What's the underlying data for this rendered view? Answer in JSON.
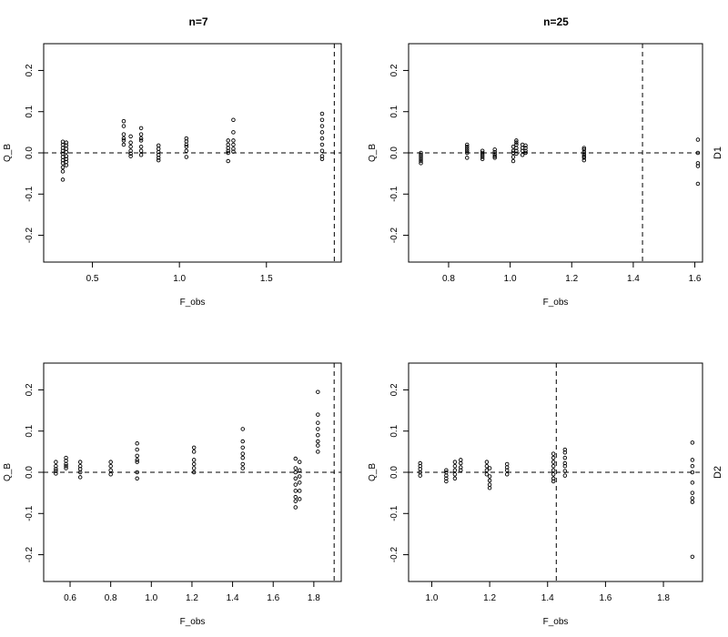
{
  "figure": {
    "column_titles": [
      "n=7",
      "n=25"
    ],
    "row_labels": [
      "D1",
      "D2"
    ]
  },
  "chart_data": [
    {
      "type": "scatter",
      "panel": "top-left",
      "xlabel": "F_obs",
      "ylabel": "Q_B",
      "xlim": [
        0.22,
        1.93
      ],
      "ylim": [
        -0.265,
        0.265
      ],
      "x_ticks": [
        0.5,
        1.0,
        1.5
      ],
      "x_tick_labels": [
        "0.5",
        "1.0",
        "1.5"
      ],
      "y_ticks": [
        -0.2,
        -0.1,
        0.0,
        0.1,
        0.2
      ],
      "y_tick_labels": [
        "-0.2",
        "-0.1",
        "0.0",
        "0.1",
        "0.2"
      ],
      "hline": 0,
      "vline": 1.89,
      "points": [
        [
          0.33,
          0.027
        ],
        [
          0.33,
          0.02
        ],
        [
          0.33,
          0.012
        ],
        [
          0.33,
          0.005
        ],
        [
          0.33,
          -0.002
        ],
        [
          0.33,
          -0.01
        ],
        [
          0.33,
          -0.018
        ],
        [
          0.33,
          -0.025
        ],
        [
          0.33,
          -0.035
        ],
        [
          0.33,
          -0.045
        ],
        [
          0.33,
          -0.065
        ],
        [
          0.35,
          0.025
        ],
        [
          0.35,
          0.018
        ],
        [
          0.35,
          0.01
        ],
        [
          0.35,
          0.002
        ],
        [
          0.35,
          -0.008
        ],
        [
          0.35,
          -0.015
        ],
        [
          0.35,
          -0.022
        ],
        [
          0.35,
          -0.03
        ],
        [
          0.68,
          0.077
        ],
        [
          0.68,
          0.065
        ],
        [
          0.68,
          0.045
        ],
        [
          0.68,
          0.035
        ],
        [
          0.68,
          0.03
        ],
        [
          0.68,
          0.02
        ],
        [
          0.72,
          0.04
        ],
        [
          0.72,
          0.025
        ],
        [
          0.72,
          0.015
        ],
        [
          0.72,
          0.005
        ],
        [
          0.72,
          -0.002
        ],
        [
          0.72,
          -0.008
        ],
        [
          0.78,
          0.06
        ],
        [
          0.78,
          0.045
        ],
        [
          0.78,
          0.035
        ],
        [
          0.78,
          0.03
        ],
        [
          0.78,
          0.015
        ],
        [
          0.78,
          0.005
        ],
        [
          0.78,
          -0.005
        ],
        [
          0.88,
          0.018
        ],
        [
          0.88,
          0.01
        ],
        [
          0.88,
          0.002
        ],
        [
          0.88,
          -0.005
        ],
        [
          0.88,
          -0.012
        ],
        [
          0.88,
          -0.018
        ],
        [
          1.04,
          0.035
        ],
        [
          1.04,
          0.028
        ],
        [
          1.04,
          0.02
        ],
        [
          1.04,
          0.015
        ],
        [
          1.04,
          0.005
        ],
        [
          1.04,
          -0.01
        ],
        [
          1.28,
          0.03
        ],
        [
          1.28,
          0.02
        ],
        [
          1.28,
          0.012
        ],
        [
          1.28,
          0.005
        ],
        [
          1.28,
          0.0
        ],
        [
          1.28,
          -0.02
        ],
        [
          1.31,
          0.08
        ],
        [
          1.31,
          0.05
        ],
        [
          1.31,
          0.03
        ],
        [
          1.31,
          0.02
        ],
        [
          1.31,
          0.01
        ],
        [
          1.31,
          0.003
        ],
        [
          1.82,
          0.095
        ],
        [
          1.82,
          0.08
        ],
        [
          1.82,
          0.065
        ],
        [
          1.82,
          0.05
        ],
        [
          1.82,
          0.035
        ],
        [
          1.82,
          0.02
        ],
        [
          1.82,
          0.005
        ],
        [
          1.82,
          -0.008
        ],
        [
          1.82,
          -0.015
        ]
      ]
    },
    {
      "type": "scatter",
      "panel": "top-right",
      "xlabel": "F_obs",
      "ylabel": "Q_B",
      "xlim": [
        0.67,
        1.625
      ],
      "ylim": [
        -0.265,
        0.265
      ],
      "x_ticks": [
        0.8,
        1.0,
        1.2,
        1.4,
        1.6
      ],
      "x_tick_labels": [
        "0.8",
        "1.0",
        "1.2",
        "1.4",
        "1.6"
      ],
      "y_ticks": [
        -0.2,
        -0.1,
        0.0,
        0.1,
        0.2
      ],
      "y_tick_labels": [
        "-0.2",
        "-0.1",
        "0.0",
        "0.1",
        "0.2"
      ],
      "hline": 0,
      "vline": 1.43,
      "points": [
        [
          0.71,
          0.0
        ],
        [
          0.71,
          -0.005
        ],
        [
          0.71,
          -0.01
        ],
        [
          0.71,
          -0.015
        ],
        [
          0.71,
          -0.02
        ],
        [
          0.71,
          -0.025
        ],
        [
          0.86,
          0.02
        ],
        [
          0.86,
          0.015
        ],
        [
          0.86,
          0.01
        ],
        [
          0.86,
          0.005
        ],
        [
          0.86,
          0.0
        ],
        [
          0.86,
          -0.012
        ],
        [
          0.91,
          0.005
        ],
        [
          0.91,
          0.0
        ],
        [
          0.91,
          -0.005
        ],
        [
          0.91,
          -0.01
        ],
        [
          0.91,
          -0.015
        ],
        [
          0.95,
          0.008
        ],
        [
          0.95,
          0.002
        ],
        [
          0.95,
          -0.003
        ],
        [
          0.95,
          -0.008
        ],
        [
          0.95,
          -0.012
        ],
        [
          1.01,
          0.015
        ],
        [
          1.01,
          0.005
        ],
        [
          1.01,
          0.0
        ],
        [
          1.01,
          -0.01
        ],
        [
          1.01,
          -0.02
        ],
        [
          1.02,
          0.03
        ],
        [
          1.02,
          0.025
        ],
        [
          1.02,
          0.02
        ],
        [
          1.02,
          0.012
        ],
        [
          1.02,
          0.005
        ],
        [
          1.02,
          -0.002
        ],
        [
          1.04,
          0.02
        ],
        [
          1.04,
          0.012
        ],
        [
          1.04,
          0.005
        ],
        [
          1.04,
          -0.005
        ],
        [
          1.05,
          0.018
        ],
        [
          1.05,
          0.012
        ],
        [
          1.05,
          0.005
        ],
        [
          1.05,
          0.0
        ],
        [
          1.24,
          0.012
        ],
        [
          1.24,
          0.008
        ],
        [
          1.24,
          0.002
        ],
        [
          1.24,
          -0.003
        ],
        [
          1.24,
          -0.008
        ],
        [
          1.24,
          -0.012
        ],
        [
          1.24,
          -0.018
        ],
        [
          1.61,
          0.032
        ],
        [
          1.61,
          0.0
        ],
        [
          1.61,
          -0.025
        ],
        [
          1.61,
          -0.032
        ],
        [
          1.61,
          -0.075
        ]
      ]
    },
    {
      "type": "scatter",
      "panel": "bottom-left",
      "xlabel": "F_obs",
      "ylabel": "Q_B",
      "xlim": [
        0.47,
        1.935
      ],
      "ylim": [
        -0.265,
        0.265
      ],
      "x_ticks": [
        0.6,
        0.8,
        1.0,
        1.2,
        1.4,
        1.6,
        1.8
      ],
      "x_tick_labels": [
        "0.6",
        "0.8",
        "1.0",
        "1.2",
        "1.4",
        "1.6",
        "1.8"
      ],
      "y_ticks": [
        -0.2,
        -0.1,
        0.0,
        0.1,
        0.2
      ],
      "y_tick_labels": [
        "-0.2",
        "-0.1",
        "0.0",
        "0.1",
        "0.2"
      ],
      "hline": 0,
      "vline": 1.9,
      "points": [
        [
          0.53,
          0.025
        ],
        [
          0.53,
          0.015
        ],
        [
          0.53,
          0.008
        ],
        [
          0.53,
          0.003
        ],
        [
          0.53,
          -0.003
        ],
        [
          0.58,
          0.035
        ],
        [
          0.58,
          0.028
        ],
        [
          0.58,
          0.02
        ],
        [
          0.58,
          0.015
        ],
        [
          0.58,
          0.01
        ],
        [
          0.65,
          0.025
        ],
        [
          0.65,
          0.015
        ],
        [
          0.65,
          0.008
        ],
        [
          0.65,
          0.0
        ],
        [
          0.65,
          -0.012
        ],
        [
          0.8,
          0.025
        ],
        [
          0.8,
          0.015
        ],
        [
          0.8,
          0.005
        ],
        [
          0.8,
          -0.005
        ],
        [
          0.93,
          0.07
        ],
        [
          0.93,
          0.055
        ],
        [
          0.93,
          0.04
        ],
        [
          0.93,
          0.03
        ],
        [
          0.93,
          0.025
        ],
        [
          0.93,
          0.0
        ],
        [
          0.93,
          -0.015
        ],
        [
          1.21,
          0.06
        ],
        [
          1.21,
          0.05
        ],
        [
          1.21,
          0.03
        ],
        [
          1.21,
          0.02
        ],
        [
          1.21,
          0.01
        ],
        [
          1.21,
          0.0
        ],
        [
          1.45,
          0.105
        ],
        [
          1.45,
          0.075
        ],
        [
          1.45,
          0.06
        ],
        [
          1.45,
          0.045
        ],
        [
          1.45,
          0.035
        ],
        [
          1.45,
          0.02
        ],
        [
          1.45,
          0.01
        ],
        [
          1.71,
          0.033
        ],
        [
          1.71,
          0.01
        ],
        [
          1.71,
          0.0
        ],
        [
          1.71,
          -0.015
        ],
        [
          1.71,
          -0.03
        ],
        [
          1.71,
          -0.045
        ],
        [
          1.71,
          -0.06
        ],
        [
          1.71,
          -0.07
        ],
        [
          1.71,
          -0.085
        ],
        [
          1.73,
          0.025
        ],
        [
          1.73,
          0.005
        ],
        [
          1.73,
          -0.01
        ],
        [
          1.73,
          -0.025
        ],
        [
          1.73,
          -0.045
        ],
        [
          1.73,
          -0.065
        ],
        [
          1.82,
          0.195
        ],
        [
          1.82,
          0.14
        ],
        [
          1.82,
          0.12
        ],
        [
          1.82,
          0.105
        ],
        [
          1.82,
          0.09
        ],
        [
          1.82,
          0.075
        ],
        [
          1.82,
          0.065
        ],
        [
          1.82,
          0.05
        ]
      ]
    },
    {
      "type": "scatter",
      "panel": "bottom-right",
      "xlabel": "F_obs",
      "ylabel": "Q_B",
      "xlim": [
        0.92,
        1.935
      ],
      "ylim": [
        -0.265,
        0.265
      ],
      "x_ticks": [
        1.0,
        1.2,
        1.4,
        1.6,
        1.8
      ],
      "x_tick_labels": [
        "1.0",
        "1.2",
        "1.4",
        "1.6",
        "1.8"
      ],
      "y_ticks": [
        -0.2,
        -0.1,
        0.0,
        0.1,
        0.2
      ],
      "y_tick_labels": [
        "-0.2",
        "-0.1",
        "0.0",
        "0.1",
        "0.2"
      ],
      "hline": 0,
      "vline": 1.43,
      "points": [
        [
          0.96,
          0.022
        ],
        [
          0.96,
          0.015
        ],
        [
          0.96,
          0.008
        ],
        [
          0.96,
          0.0
        ],
        [
          0.96,
          -0.008
        ],
        [
          1.05,
          0.005
        ],
        [
          1.05,
          0.0
        ],
        [
          1.05,
          -0.008
        ],
        [
          1.05,
          -0.015
        ],
        [
          1.05,
          -0.022
        ],
        [
          1.08,
          0.025
        ],
        [
          1.08,
          0.015
        ],
        [
          1.08,
          0.005
        ],
        [
          1.08,
          -0.005
        ],
        [
          1.08,
          -0.015
        ],
        [
          1.1,
          0.03
        ],
        [
          1.1,
          0.022
        ],
        [
          1.1,
          0.012
        ],
        [
          1.1,
          0.005
        ],
        [
          1.19,
          0.025
        ],
        [
          1.19,
          0.015
        ],
        [
          1.19,
          0.005
        ],
        [
          1.19,
          -0.005
        ],
        [
          1.2,
          0.01
        ],
        [
          1.2,
          -0.01
        ],
        [
          1.2,
          -0.02
        ],
        [
          1.2,
          -0.03
        ],
        [
          1.2,
          -0.038
        ],
        [
          1.26,
          0.02
        ],
        [
          1.26,
          0.012
        ],
        [
          1.26,
          0.005
        ],
        [
          1.26,
          -0.005
        ],
        [
          1.42,
          0.045
        ],
        [
          1.42,
          0.035
        ],
        [
          1.42,
          0.025
        ],
        [
          1.42,
          0.015
        ],
        [
          1.42,
          0.005
        ],
        [
          1.42,
          -0.005
        ],
        [
          1.42,
          -0.015
        ],
        [
          1.42,
          -0.022
        ],
        [
          1.46,
          0.055
        ],
        [
          1.46,
          0.048
        ],
        [
          1.46,
          0.035
        ],
        [
          1.46,
          0.022
        ],
        [
          1.46,
          0.015
        ],
        [
          1.46,
          0.003
        ],
        [
          1.46,
          -0.008
        ],
        [
          1.9,
          0.072
        ],
        [
          1.9,
          0.03
        ],
        [
          1.9,
          0.015
        ],
        [
          1.9,
          0.0
        ],
        [
          1.9,
          -0.025
        ],
        [
          1.9,
          -0.05
        ],
        [
          1.9,
          -0.063
        ],
        [
          1.9,
          -0.072
        ],
        [
          1.9,
          -0.205
        ]
      ]
    }
  ]
}
